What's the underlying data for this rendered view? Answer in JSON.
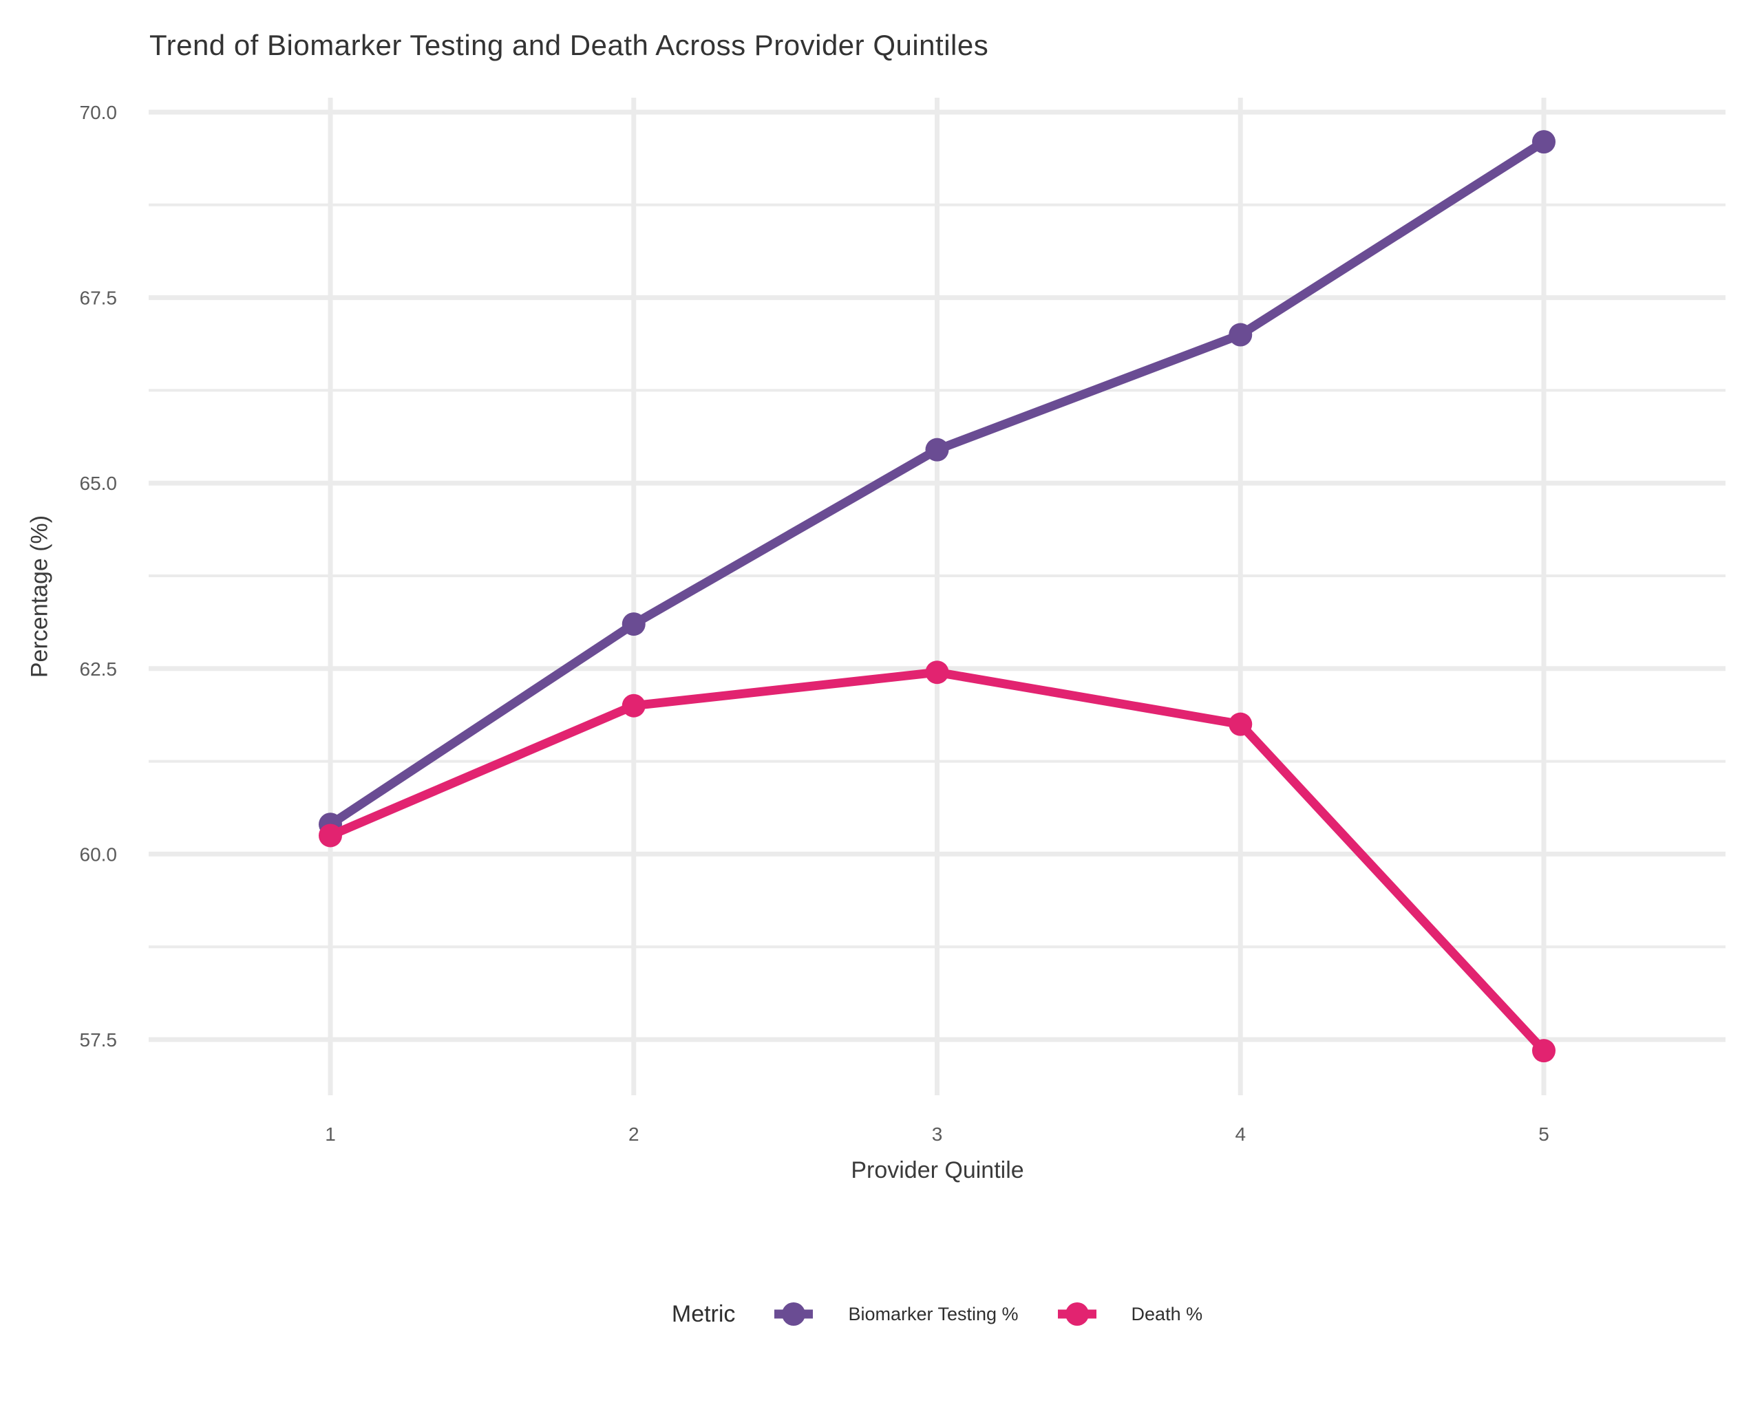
{
  "page": {
    "background": "#ffffff"
  },
  "chart_data": {
    "type": "line",
    "title": "Trend of Biomarker Testing and Death Across Provider Quintiles",
    "xlabel": "Provider Quintile",
    "ylabel": "Percentage (%)",
    "legend_title": "Metric",
    "legend_position": "bottom",
    "grid": "on",
    "categories": [
      1,
      2,
      3,
      4,
      5
    ],
    "y_ticks": [
      57.5,
      60.0,
      62.5,
      65.0,
      67.5,
      70.0
    ],
    "y_minor_step": 1.25,
    "ylim": [
      56.75,
      70.2
    ],
    "series": [
      {
        "name": "Biomarker Testing %",
        "color": "#6a4c93",
        "values": [
          60.4,
          63.1,
          65.45,
          67.0,
          69.6
        ]
      },
      {
        "name": "Death %",
        "color": "#e22370",
        "values": [
          60.25,
          62.0,
          62.45,
          61.75,
          57.35
        ]
      }
    ],
    "colors": {
      "grid": "#ebebeb",
      "tick_label": "#5b5b5b",
      "title": "#333333",
      "axis_title": "#3b3b3b",
      "legend_text": "#2f2f2f"
    }
  }
}
